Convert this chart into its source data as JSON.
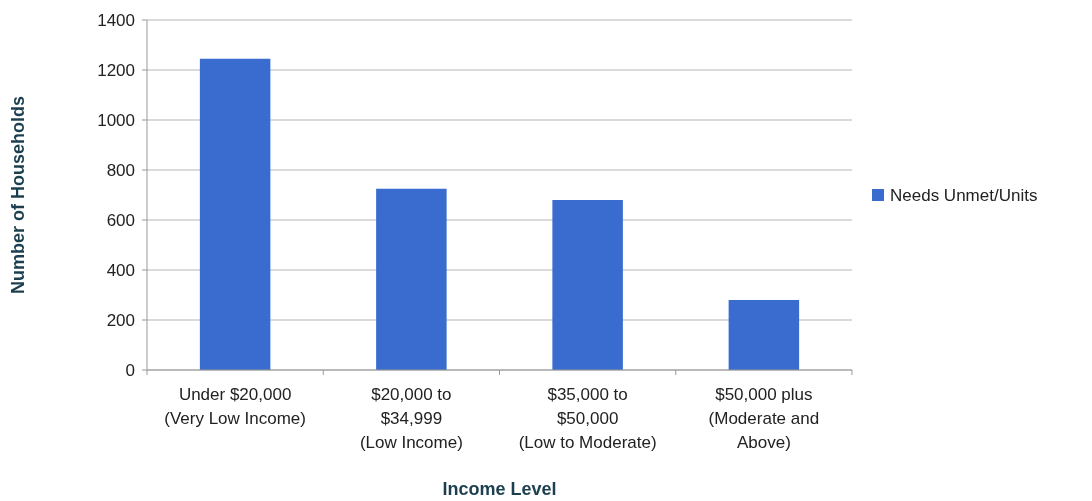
{
  "chart_data": {
    "type": "bar",
    "xlabel": "Income Level",
    "ylabel": "Number of Households",
    "categories": [
      "Under $20,000\n(Very Low Income)",
      "$20,000 to\n$34,999\n(Low Income)",
      "$35,000 to\n$50,000\n(Low to Moderate)",
      "$50,000 plus\n(Moderate and\nAbove)"
    ],
    "series": [
      {
        "name": "Needs Unmet/Units",
        "color": "#3a6cd0",
        "values": [
          1245,
          725,
          680,
          280
        ]
      }
    ],
    "ylim": [
      0,
      1400
    ],
    "yticks": [
      0,
      200,
      400,
      600,
      800,
      1000,
      1200,
      1400
    ],
    "grid": "y",
    "legend": "right"
  }
}
